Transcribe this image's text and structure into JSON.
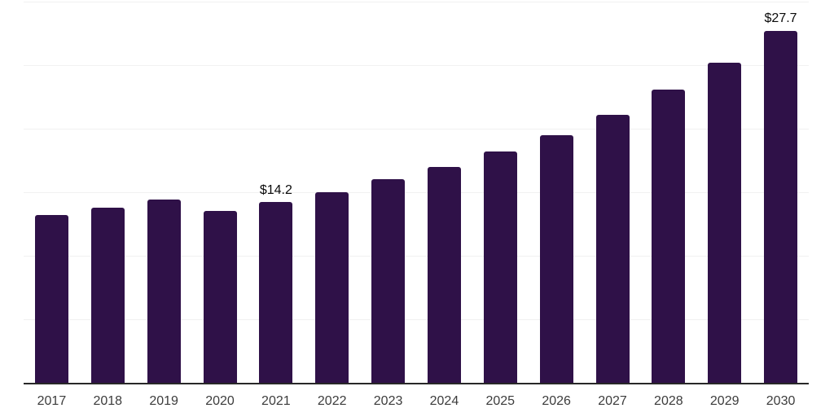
{
  "chart_data": {
    "type": "bar",
    "title": "",
    "xlabel": "",
    "ylabel": "",
    "categories": [
      "2017",
      "2018",
      "2019",
      "2020",
      "2021",
      "2022",
      "2023",
      "2024",
      "2025",
      "2026",
      "2027",
      "2028",
      "2029",
      "2030"
    ],
    "values": [
      13.2,
      13.8,
      14.4,
      13.5,
      14.2,
      15.0,
      16.0,
      17.0,
      18.2,
      19.5,
      21.1,
      23.1,
      25.2,
      27.7
    ],
    "annotations": [
      {
        "category": "2021",
        "label": "$14.2"
      },
      {
        "category": "2030",
        "label": "$27.7"
      }
    ],
    "ylim": [
      0,
      30
    ],
    "ytick_interval": 5,
    "gridline_values": [
      5,
      10,
      15,
      20,
      25,
      30
    ],
    "grid": "horizontal",
    "legend": "none",
    "y_axis_labels_visible": false,
    "colors": {
      "bar": "#2F1148",
      "axis_line": "#282828",
      "gridline": "#F1F1F1",
      "tick_label": "#3C3C3C",
      "annotation_text": "#0A0A0A",
      "background": "#FFFFFF"
    }
  }
}
